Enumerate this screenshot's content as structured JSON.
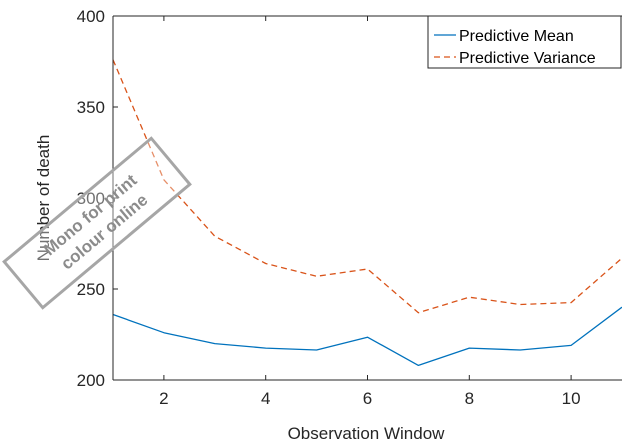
{
  "chart_data": {
    "type": "line",
    "xlabel": "Observation Window",
    "ylabel": "Number of death",
    "xlim": [
      1,
      11
    ],
    "ylim": [
      200,
      400
    ],
    "xticks": [
      2,
      4,
      6,
      8,
      10
    ],
    "yticks": [
      200,
      250,
      300,
      350,
      400
    ],
    "grid": false,
    "legend_position": "top-right",
    "x": [
      1,
      2,
      3,
      4,
      5,
      6,
      7,
      8,
      9,
      10,
      11
    ],
    "series": [
      {
        "name": "Predictive Mean",
        "style": "solid",
        "color": "#0072bd",
        "values": [
          236,
          226,
          220,
          217.5,
          216.5,
          223.5,
          208,
          217.5,
          216.5,
          219,
          240
        ]
      },
      {
        "name": "Predictive Variance",
        "style": "dashed",
        "color": "#d95319",
        "values": [
          376,
          310,
          279,
          264,
          257,
          261,
          237,
          245.5,
          241.5,
          242.5,
          267
        ]
      }
    ]
  },
  "watermark": {
    "line1": "Mono for print",
    "line2": "colour online"
  }
}
